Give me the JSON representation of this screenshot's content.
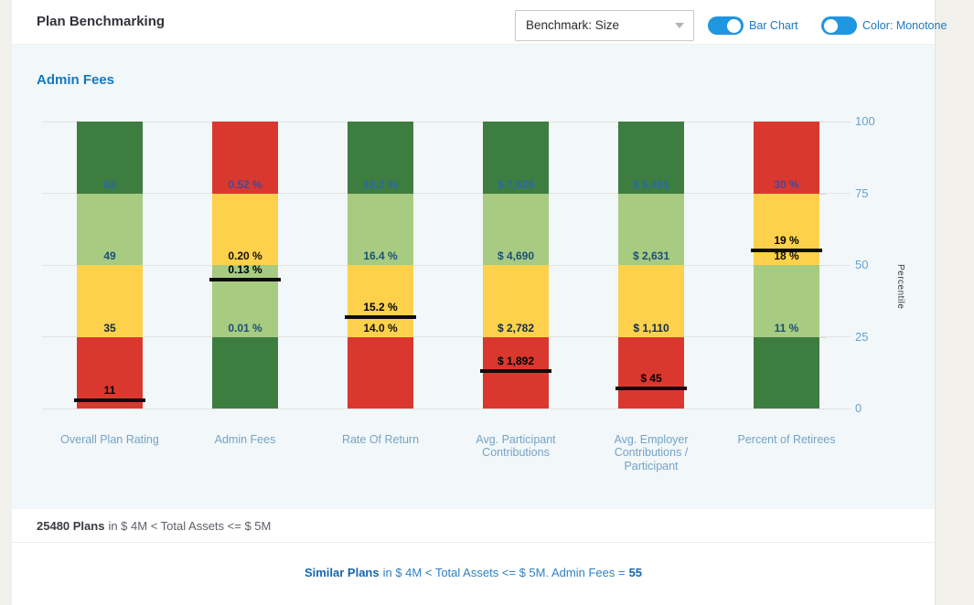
{
  "header": {
    "title": "Plan Benchmarking",
    "benchmark_dropdown": {
      "value": "Benchmark: Size"
    },
    "toggles": [
      {
        "label": "Bar Chart",
        "on": true,
        "knob_side": "right"
      },
      {
        "label": "Color: Monotone",
        "on": true,
        "knob_side": "left"
      }
    ]
  },
  "section_title": "Admin Fees",
  "chart_data": {
    "type": "bar",
    "title": "Admin Fees",
    "ylabel": "Percentile",
    "ylim": [
      0,
      100
    ],
    "yticks": [
      100,
      75,
      50,
      25,
      0
    ],
    "grid": true,
    "legend_position": "none",
    "palette": {
      "dark_green": "#3e7d40",
      "light_green": "#a7cb80",
      "yellow": "#fdd14b",
      "red": "#da382f",
      "marker_black": "#0c0c0c"
    },
    "categories": [
      "Overall Plan Rating",
      "Admin Fees",
      "Rate Of Return",
      "Avg. Participant Contributions",
      "Avg. Employer Contributions / Participant",
      "Percent of Retirees"
    ],
    "bars": [
      {
        "category": "Overall Plan Rating",
        "label_lines": [
          "Overall Plan Rating"
        ],
        "segment_colors_top_to_bottom": [
          "dark_green",
          "light_green",
          "yellow",
          "red"
        ],
        "boundary_labels": [
          {
            "percentile": 75,
            "text": "62",
            "color": "#2a69a5"
          },
          {
            "percentile": 50,
            "text": "49",
            "color": "#1d4f78"
          },
          {
            "percentile": 25,
            "text": "35",
            "color": "#122c46"
          }
        ],
        "marker": {
          "percentile": 3,
          "text": "11",
          "color": "#000000"
        }
      },
      {
        "category": "Admin Fees",
        "label_lines": [
          "Admin Fees"
        ],
        "segment_colors_top_to_bottom": [
          "red",
          "yellow",
          "light_green",
          "dark_green"
        ],
        "boundary_labels": [
          {
            "percentile": 75,
            "text": "0.52 %",
            "color": "#47499a"
          },
          {
            "percentile": 50,
            "text": "0.20 %",
            "color": "#121212"
          },
          {
            "percentile": 25,
            "text": "0.01 %",
            "color": "#1d4f78"
          }
        ],
        "marker": {
          "percentile": 45,
          "text": "0.13 %",
          "color": "#000000"
        }
      },
      {
        "category": "Rate Of Return",
        "label_lines": [
          "Rate Of Return"
        ],
        "segment_colors_top_to_bottom": [
          "dark_green",
          "light_green",
          "yellow",
          "red"
        ],
        "boundary_labels": [
          {
            "percentile": 75,
            "text": "18.2 %",
            "color": "#2a69a5"
          },
          {
            "percentile": 50,
            "text": "16.4 %",
            "color": "#1d4f78"
          },
          {
            "percentile": 25,
            "text": "14.0 %",
            "color": "#121212"
          }
        ],
        "marker": {
          "percentile": 32,
          "text": "15.2 %",
          "color": "#000000"
        }
      },
      {
        "category": "Avg. Participant Contributions",
        "label_lines": [
          "Avg. Participant",
          "Contributions"
        ],
        "segment_colors_top_to_bottom": [
          "dark_green",
          "light_green",
          "yellow",
          "red"
        ],
        "boundary_labels": [
          {
            "percentile": 75,
            "text": "$ 7,526",
            "color": "#2a69a5"
          },
          {
            "percentile": 50,
            "text": "$ 4,690",
            "color": "#1d4f78"
          },
          {
            "percentile": 25,
            "text": "$ 2,782",
            "color": "#122c46"
          }
        ],
        "marker": {
          "percentile": 13,
          "text": "$ 1,892",
          "color": "#000000"
        }
      },
      {
        "category": "Avg. Employer Contributions / Participant",
        "label_lines": [
          "Avg. Employer",
          "Contributions /",
          "Participant"
        ],
        "segment_colors_top_to_bottom": [
          "dark_green",
          "light_green",
          "yellow",
          "red"
        ],
        "boundary_labels": [
          {
            "percentile": 75,
            "text": "$ 6,481",
            "color": "#2a69a5"
          },
          {
            "percentile": 50,
            "text": "$ 2,631",
            "color": "#1d4f78"
          },
          {
            "percentile": 25,
            "text": "$ 1,110",
            "color": "#122c46"
          }
        ],
        "marker": {
          "percentile": 7,
          "text": "$ 45",
          "color": "#000000"
        }
      },
      {
        "category": "Percent of Retirees",
        "label_lines": [
          "Percent of Retirees"
        ],
        "segment_colors_top_to_bottom": [
          "red",
          "yellow",
          "light_green",
          "dark_green"
        ],
        "boundary_labels": [
          {
            "percentile": 75,
            "text": "30 %",
            "color": "#47499a"
          },
          {
            "percentile": 50,
            "text": "18 %",
            "color": "#121212"
          },
          {
            "percentile": 25,
            "text": "11 %",
            "color": "#1d4f78"
          }
        ],
        "marker": {
          "percentile": 55,
          "text": "19 %",
          "color": "#000000"
        }
      }
    ]
  },
  "footer": {
    "plans_count": "25480 Plans",
    "plans_rest": "in $ 4M < Total Assets <= $ 5M",
    "similar_bold": "Similar Plans",
    "similar_mid": "in $ 4M < Total Assets <= $ 5M. Admin Fees =",
    "similar_value": "55"
  }
}
